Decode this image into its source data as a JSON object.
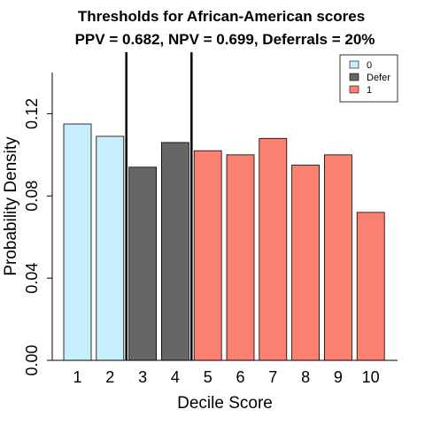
{
  "chart_data": {
    "type": "bar",
    "title": "Thresholds for African-American scores",
    "subtitle": "PPV = 0.682, NPV = 0.699,  Deferrals = 20%",
    "xlabel": "Decile Score",
    "ylabel": "Probability Density",
    "categories": [
      "1",
      "2",
      "3",
      "4",
      "5",
      "6",
      "7",
      "8",
      "9",
      "10"
    ],
    "values": [
      0.115,
      0.109,
      0.094,
      0.106,
      0.102,
      0.1,
      0.108,
      0.095,
      0.1,
      0.072
    ],
    "groups": [
      "0",
      "0",
      "Defer",
      "Defer",
      "1",
      "1",
      "1",
      "1",
      "1",
      "1"
    ],
    "ylim": [
      0,
      0.14
    ],
    "yticks": [
      0.0,
      0.04,
      0.08,
      0.12
    ],
    "ytick_labels": [
      "0.00",
      "0.04",
      "0.08",
      "0.12"
    ],
    "thresholds": [
      2.5,
      4.5
    ],
    "legend": {
      "placement": "top-right",
      "entries": [
        {
          "label": "0",
          "color": "#c6eefd"
        },
        {
          "label": "Defer",
          "color": "#666666"
        },
        {
          "label": "1",
          "color": "#fa8072"
        }
      ]
    },
    "grid": false
  }
}
